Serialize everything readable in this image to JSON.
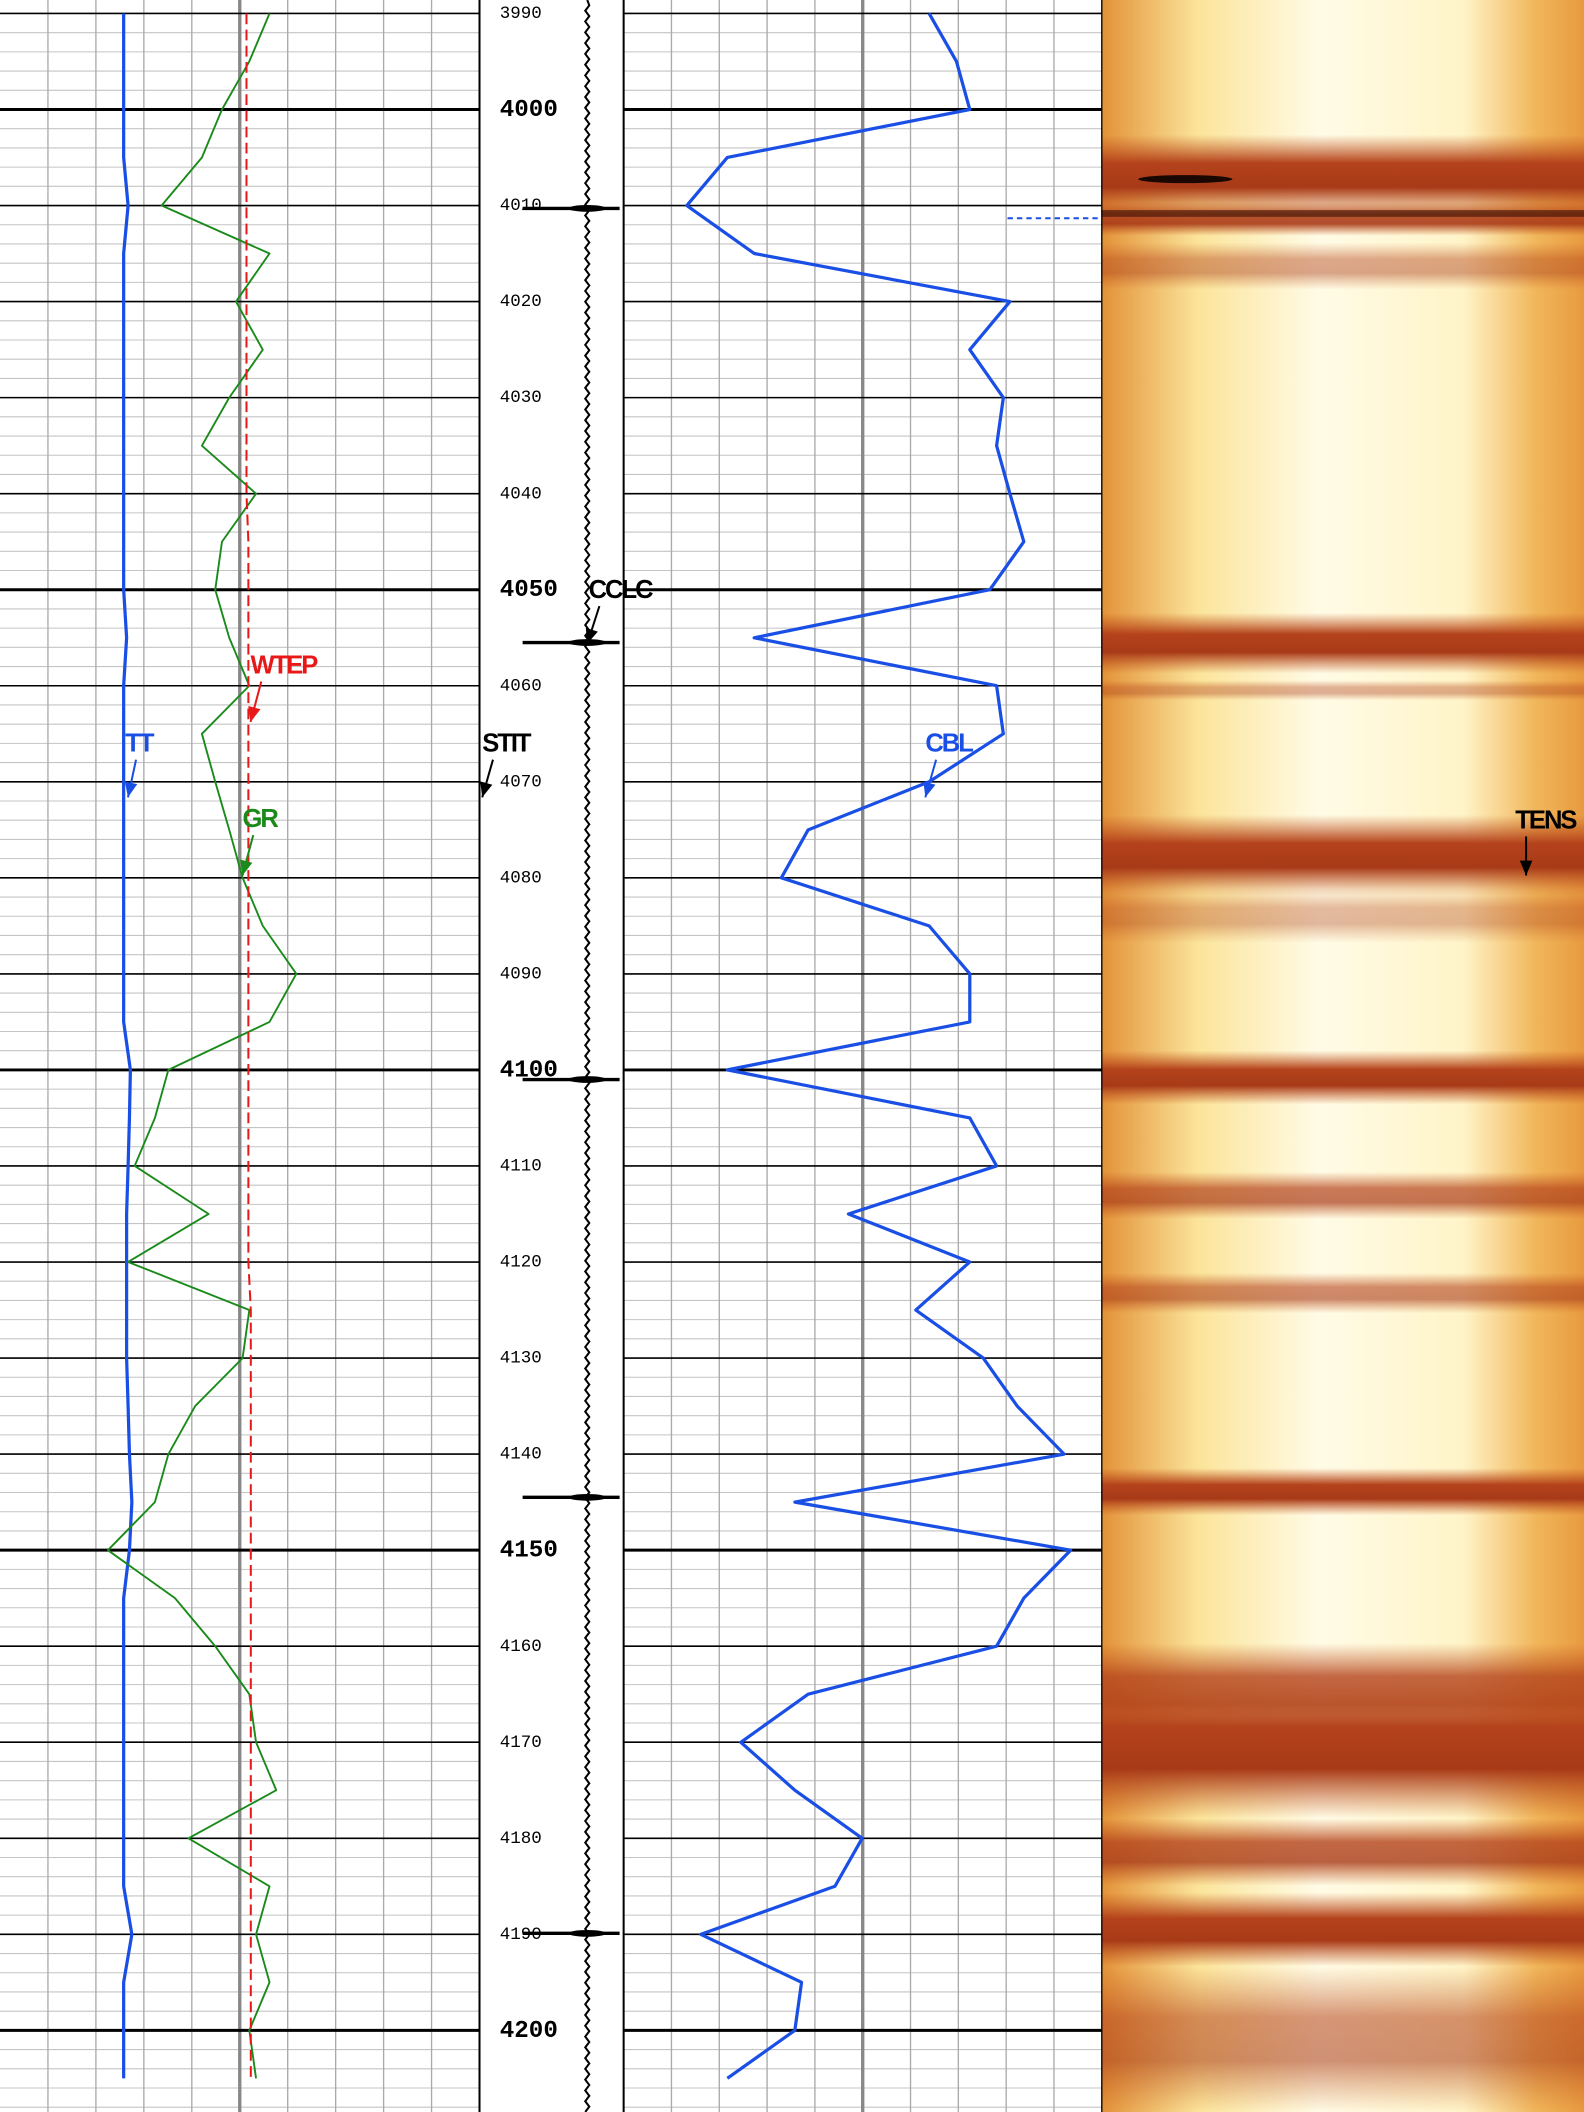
{
  "chart_data": {
    "type": "well-log",
    "ylim": [
      3988.6,
      4208.5
    ],
    "yticks": [
      3990,
      4000,
      4010,
      4020,
      4030,
      4040,
      4050,
      4060,
      4070,
      4080,
      4090,
      4100,
      4110,
      4120,
      4130,
      4140,
      4150,
      4160,
      4170,
      4180,
      4190,
      4200
    ],
    "grid": true,
    "depths": [
      3990,
      3995,
      4000,
      4005,
      4010,
      4015,
      4020,
      4025,
      4030,
      4035,
      4040,
      4045,
      4050,
      4055,
      4060,
      4065,
      4070,
      4075,
      4080,
      4085,
      4090,
      4095,
      4100,
      4105,
      4110,
      4115,
      4120,
      4125,
      4130,
      4135,
      4140,
      4145,
      4150,
      4155,
      4160,
      4165,
      4170,
      4175,
      4180,
      4185,
      4190,
      4195,
      4200,
      4205
    ],
    "tracks": [
      {
        "xlim": [
          0,
          100
        ],
        "series": [
          {
            "name": "TT",
            "color": "#1a4fe6",
            "values": [
              25.8,
              25.8,
              25.8,
              25.8,
              26.7,
              25.8,
              25.8,
              25.8,
              25.8,
              25.8,
              25.8,
              25.8,
              25.8,
              26.4,
              25.8,
              25.8,
              25.8,
              25.8,
              25.8,
              25.8,
              25.8,
              25.8,
              27.2,
              27.0,
              26.7,
              26.4,
              26.4,
              26.4,
              26.4,
              26.7,
              27.0,
              27.5,
              27.0,
              25.8,
              25.8,
              25.8,
              25.8,
              25.8,
              25.8,
              25.8,
              27.5,
              25.8,
              25.8,
              25.8
            ]
          },
          {
            "name": "GR",
            "color": "#1a8a1a",
            "values": [
              56.2,
              52.0,
              46.3,
              42.1,
              33.7,
              56.2,
              49.2,
              54.8,
              47.8,
              42.1,
              53.4,
              46.3,
              44.9,
              47.8,
              52.0,
              42.1,
              44.9,
              47.8,
              50.6,
              54.8,
              61.8,
              56.2,
              35.1,
              32.3,
              28.1,
              43.5,
              26.7,
              52.0,
              50.6,
              40.7,
              35.1,
              32.3,
              22.5,
              36.5,
              44.9,
              52.0,
              53.4,
              57.6,
              39.3,
              56.2,
              53.4,
              56.2,
              52.0,
              53.4
            ]
          },
          {
            "name": "WTEP",
            "color": "#e81818",
            "dash": true,
            "values": [
              51.4,
              51.4,
              51.4,
              51.4,
              51.4,
              51.4,
              51.4,
              51.4,
              51.4,
              51.4,
              51.4,
              51.8,
              51.8,
              51.8,
              51.8,
              51.8,
              51.8,
              51.8,
              51.8,
              51.8,
              51.8,
              51.8,
              51.8,
              51.8,
              51.8,
              51.8,
              51.8,
              52.3,
              52.3,
              52.3,
              52.3,
              52.3,
              52.3,
              52.3,
              52.3,
              52.3,
              52.3,
              52.3,
              52.3,
              52.3,
              52.3,
              52.3,
              52.3,
              52.3
            ]
          }
        ]
      },
      {
        "xlim": [
          0,
          100
        ],
        "series": [
          {
            "name": "CBL",
            "color": "#1a4fe6",
            "values": [
              63.9,
              69.6,
              72.4,
              21.7,
              13.2,
              27.3,
              80.8,
              72.4,
              79.4,
              78.0,
              80.8,
              83.7,
              76.6,
              27.3,
              78.0,
              79.4,
              63.9,
              38.6,
              33.0,
              63.9,
              72.4,
              72.4,
              21.7,
              72.4,
              78.0,
              47.0,
              72.4,
              61.1,
              75.2,
              82.3,
              92.1,
              35.8,
              93.5,
              83.7,
              78.0,
              38.6,
              24.5,
              35.8,
              49.9,
              44.2,
              16.1,
              37.2,
              35.8,
              21.7
            ]
          }
        ]
      }
    ],
    "collars": {
      "name": "CCLC",
      "depths": [
        4010.3,
        4055.5,
        4101.0,
        4144.5,
        4189.9
      ]
    },
    "annotations": [
      "STIT",
      "TENS"
    ]
  }
}
